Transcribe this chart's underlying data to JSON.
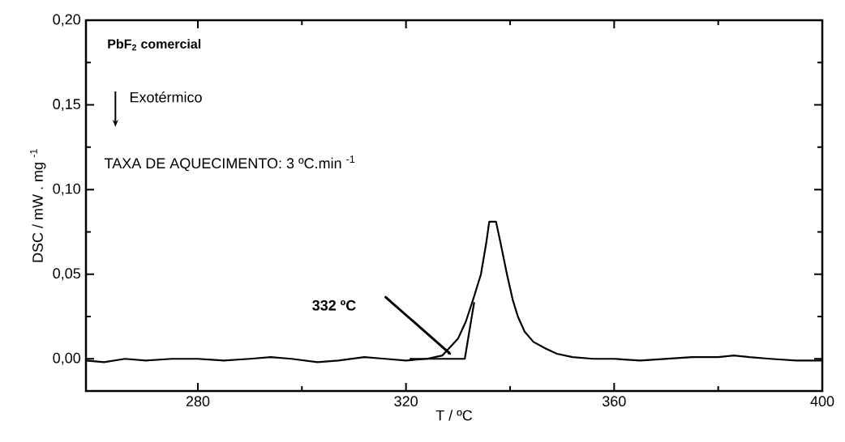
{
  "chart_data": {
    "type": "line",
    "title": "PbF$_{2}$ comercial",
    "xlabel": "T / ºC",
    "ylabel": "DSC / mW . mg $^{-1}$",
    "xlim": [
      258.5,
      400
    ],
    "ylim": [
      -0.019,
      0.2
    ],
    "xticks": [
      {
        "value": 280,
        "label": "280"
      },
      {
        "value": 300,
        "label": null
      },
      {
        "value": 320,
        "label": "320"
      },
      {
        "value": 340,
        "label": null
      },
      {
        "value": 360,
        "label": "360"
      },
      {
        "value": 380,
        "label": null
      },
      {
        "value": 400,
        "label": "400"
      }
    ],
    "yticks": [
      {
        "value": 0,
        "label": "0,00"
      },
      {
        "value": 0.025,
        "label": null
      },
      {
        "value": 0.05,
        "label": "0,05"
      },
      {
        "value": 0.075,
        "label": null
      },
      {
        "value": 0.1,
        "label": "0,10"
      },
      {
        "value": 0.125,
        "label": null
      },
      {
        "value": 0.15,
        "label": "0,15"
      },
      {
        "value": 0.175,
        "label": null
      },
      {
        "value": 0.2,
        "label": "0,20"
      }
    ],
    "series": [
      {
        "color": "#000000",
        "x": [
          258.5,
          262,
          266,
          270,
          275,
          280,
          285,
          290,
          294,
          298,
          303,
          307,
          312,
          316,
          320,
          324,
          327,
          328.2,
          330,
          331.5,
          333,
          334.4,
          335.4,
          336,
          337.3,
          338.2,
          339.4,
          340.5,
          341.5,
          342.8,
          344.5,
          346.9,
          349,
          352,
          356,
          360,
          365,
          370,
          375,
          380,
          383,
          386,
          390,
          395,
          400
        ],
        "values": [
          -0.001,
          -0.002,
          0.0,
          -0.001,
          0.0,
          0.0,
          -0.001,
          0.0,
          0.001,
          0.0,
          -0.002,
          -0.001,
          0.001,
          0.0,
          -0.001,
          0.0,
          0.002,
          0.006,
          0.012,
          0.022,
          0.036,
          0.05,
          0.068,
          0.081,
          0.081,
          0.068,
          0.05,
          0.035,
          0.025,
          0.016,
          0.01,
          0.006,
          0.003,
          0.001,
          0.0,
          0.0,
          -0.001,
          0.0,
          0.001,
          0.001,
          0.002,
          0.001,
          0.0,
          -0.001,
          -0.001
        ]
      },
      {
        "color": "#000000",
        "type": "line",
        "x": [
          320.7,
          331.3,
          333.1
        ],
        "values": [
          0.0,
          0.0,
          0.0335
        ]
      }
    ],
    "annotations": [
      "Exotérmico",
      "TAXA DE AQUECIMENTO: 3 ºC.min $^{-1}$",
      "332 ºC"
    ]
  }
}
